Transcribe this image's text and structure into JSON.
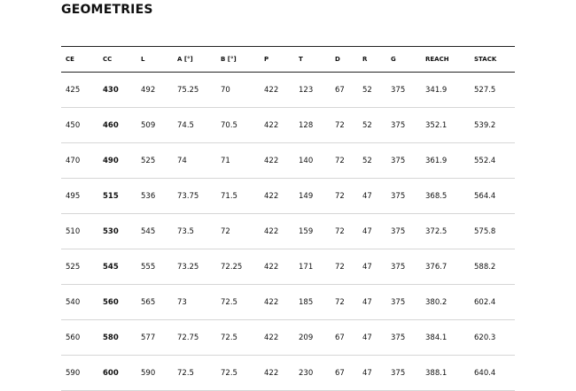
{
  "title": "GEOMETRIES",
  "table": {
    "headers": [
      "CE",
      "CC",
      "L",
      "A [°]",
      "B [°]",
      "P",
      "T",
      "D",
      "R",
      "G",
      "REACH",
      "STACK"
    ],
    "rows": [
      [
        "425",
        "430",
        "492",
        "75.25",
        "70",
        "422",
        "123",
        "67",
        "52",
        "375",
        "341.9",
        "527.5"
      ],
      [
        "450",
        "460",
        "509",
        "74.5",
        "70.5",
        "422",
        "128",
        "72",
        "52",
        "375",
        "352.1",
        "539.2"
      ],
      [
        "470",
        "490",
        "525",
        "74",
        "71",
        "422",
        "140",
        "72",
        "52",
        "375",
        "361.9",
        "552.4"
      ],
      [
        "495",
        "515",
        "536",
        "73.75",
        "71.5",
        "422",
        "149",
        "72",
        "47",
        "375",
        "368.5",
        "564.4"
      ],
      [
        "510",
        "530",
        "545",
        "73.5",
        "72",
        "422",
        "159",
        "72",
        "47",
        "375",
        "372.5",
        "575.8"
      ],
      [
        "525",
        "545",
        "555",
        "73.25",
        "72.25",
        "422",
        "171",
        "72",
        "47",
        "375",
        "376.7",
        "588.2"
      ],
      [
        "540",
        "560",
        "565",
        "73",
        "72.5",
        "422",
        "185",
        "72",
        "47",
        "375",
        "380.2",
        "602.4"
      ],
      [
        "560",
        "580",
        "577",
        "72.75",
        "72.5",
        "422",
        "209",
        "67",
        "47",
        "375",
        "384.1",
        "620.3"
      ],
      [
        "590",
        "600",
        "590",
        "72.5",
        "72.5",
        "422",
        "230",
        "67",
        "47",
        "375",
        "388.1",
        "640.4"
      ]
    ]
  }
}
